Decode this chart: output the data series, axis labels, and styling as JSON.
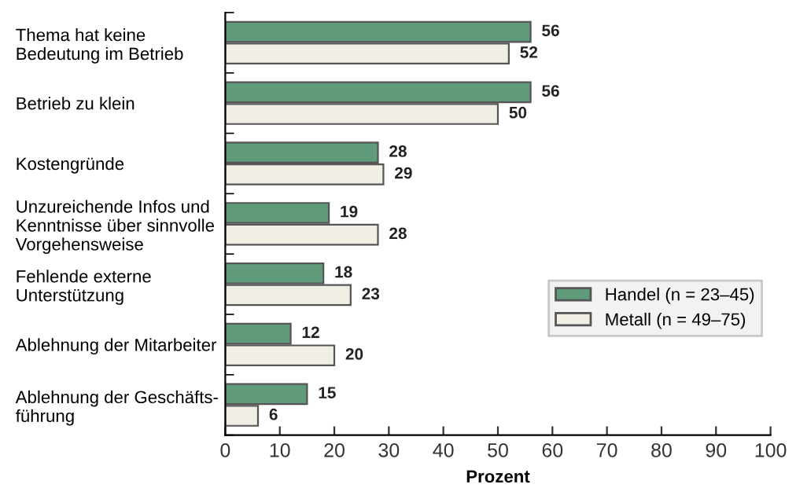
{
  "chart_data": {
    "type": "bar",
    "orientation": "horizontal",
    "xlabel": "Prozent",
    "categories": [
      "Thema hat keine\nBedeutung im Betrieb",
      "Betrieb zu klein",
      "Kostengründe",
      "Unzureichende Infos und\nKenntnisse über sinnvolle\nVorgehensweise",
      "Fehlende externe\nUnterstützung",
      "Ablehnung der Mitarbeiter",
      "Ablehnung der Geschäfts-\nführung"
    ],
    "series": [
      {
        "name": "Handel (n = 23–45)",
        "color": "#5f9a7a",
        "values": [
          56,
          56,
          28,
          19,
          18,
          12,
          15
        ]
      },
      {
        "name": "Metall (n = 49–75)",
        "color": "#f1eee5",
        "values": [
          52,
          50,
          29,
          28,
          23,
          20,
          6
        ]
      }
    ],
    "xlim": [
      0,
      100
    ],
    "xticks": [
      0,
      10,
      20,
      30,
      40,
      50,
      60,
      70,
      80,
      90,
      100
    ],
    "data_labels": true,
    "grid": false,
    "legend": "right"
  }
}
